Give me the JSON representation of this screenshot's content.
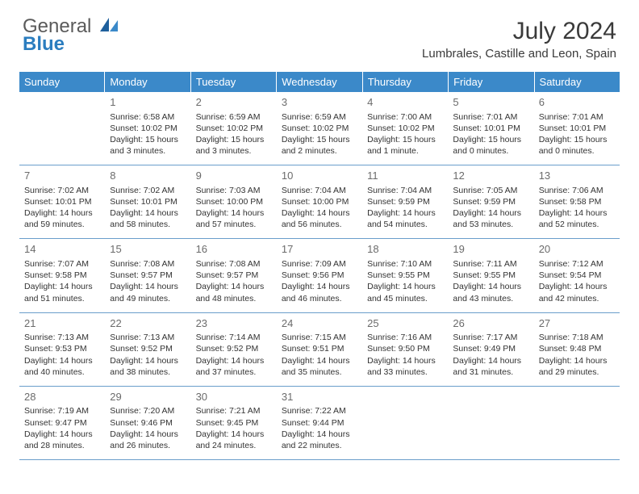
{
  "brand": {
    "general": "General",
    "blue": "Blue"
  },
  "title": "July 2024",
  "location": "Lumbrales, Castille and Leon, Spain",
  "colors": {
    "header_bg": "#3b89c9",
    "header_text": "#ffffff",
    "rule": "#6a9ecb",
    "daynum": "#6b6b6b",
    "body_text": "#333333"
  },
  "dayNames": [
    "Sunday",
    "Monday",
    "Tuesday",
    "Wednesday",
    "Thursday",
    "Friday",
    "Saturday"
  ],
  "weeks": [
    [
      null,
      {
        "n": "1",
        "sr": "6:58 AM",
        "ss": "10:02 PM",
        "dl": "15 hours and 3 minutes."
      },
      {
        "n": "2",
        "sr": "6:59 AM",
        "ss": "10:02 PM",
        "dl": "15 hours and 3 minutes."
      },
      {
        "n": "3",
        "sr": "6:59 AM",
        "ss": "10:02 PM",
        "dl": "15 hours and 2 minutes."
      },
      {
        "n": "4",
        "sr": "7:00 AM",
        "ss": "10:02 PM",
        "dl": "15 hours and 1 minute."
      },
      {
        "n": "5",
        "sr": "7:01 AM",
        "ss": "10:01 PM",
        "dl": "15 hours and 0 minutes."
      },
      {
        "n": "6",
        "sr": "7:01 AM",
        "ss": "10:01 PM",
        "dl": "15 hours and 0 minutes."
      }
    ],
    [
      {
        "n": "7",
        "sr": "7:02 AM",
        "ss": "10:01 PM",
        "dl": "14 hours and 59 minutes."
      },
      {
        "n": "8",
        "sr": "7:02 AM",
        "ss": "10:01 PM",
        "dl": "14 hours and 58 minutes."
      },
      {
        "n": "9",
        "sr": "7:03 AM",
        "ss": "10:00 PM",
        "dl": "14 hours and 57 minutes."
      },
      {
        "n": "10",
        "sr": "7:04 AM",
        "ss": "10:00 PM",
        "dl": "14 hours and 56 minutes."
      },
      {
        "n": "11",
        "sr": "7:04 AM",
        "ss": "9:59 PM",
        "dl": "14 hours and 54 minutes."
      },
      {
        "n": "12",
        "sr": "7:05 AM",
        "ss": "9:59 PM",
        "dl": "14 hours and 53 minutes."
      },
      {
        "n": "13",
        "sr": "7:06 AM",
        "ss": "9:58 PM",
        "dl": "14 hours and 52 minutes."
      }
    ],
    [
      {
        "n": "14",
        "sr": "7:07 AM",
        "ss": "9:58 PM",
        "dl": "14 hours and 51 minutes."
      },
      {
        "n": "15",
        "sr": "7:08 AM",
        "ss": "9:57 PM",
        "dl": "14 hours and 49 minutes."
      },
      {
        "n": "16",
        "sr": "7:08 AM",
        "ss": "9:57 PM",
        "dl": "14 hours and 48 minutes."
      },
      {
        "n": "17",
        "sr": "7:09 AM",
        "ss": "9:56 PM",
        "dl": "14 hours and 46 minutes."
      },
      {
        "n": "18",
        "sr": "7:10 AM",
        "ss": "9:55 PM",
        "dl": "14 hours and 45 minutes."
      },
      {
        "n": "19",
        "sr": "7:11 AM",
        "ss": "9:55 PM",
        "dl": "14 hours and 43 minutes."
      },
      {
        "n": "20",
        "sr": "7:12 AM",
        "ss": "9:54 PM",
        "dl": "14 hours and 42 minutes."
      }
    ],
    [
      {
        "n": "21",
        "sr": "7:13 AM",
        "ss": "9:53 PM",
        "dl": "14 hours and 40 minutes."
      },
      {
        "n": "22",
        "sr": "7:13 AM",
        "ss": "9:52 PM",
        "dl": "14 hours and 38 minutes."
      },
      {
        "n": "23",
        "sr": "7:14 AM",
        "ss": "9:52 PM",
        "dl": "14 hours and 37 minutes."
      },
      {
        "n": "24",
        "sr": "7:15 AM",
        "ss": "9:51 PM",
        "dl": "14 hours and 35 minutes."
      },
      {
        "n": "25",
        "sr": "7:16 AM",
        "ss": "9:50 PM",
        "dl": "14 hours and 33 minutes."
      },
      {
        "n": "26",
        "sr": "7:17 AM",
        "ss": "9:49 PM",
        "dl": "14 hours and 31 minutes."
      },
      {
        "n": "27",
        "sr": "7:18 AM",
        "ss": "9:48 PM",
        "dl": "14 hours and 29 minutes."
      }
    ],
    [
      {
        "n": "28",
        "sr": "7:19 AM",
        "ss": "9:47 PM",
        "dl": "14 hours and 28 minutes."
      },
      {
        "n": "29",
        "sr": "7:20 AM",
        "ss": "9:46 PM",
        "dl": "14 hours and 26 minutes."
      },
      {
        "n": "30",
        "sr": "7:21 AM",
        "ss": "9:45 PM",
        "dl": "14 hours and 24 minutes."
      },
      {
        "n": "31",
        "sr": "7:22 AM",
        "ss": "9:44 PM",
        "dl": "14 hours and 22 minutes."
      },
      null,
      null,
      null
    ]
  ],
  "labels": {
    "sunrise": "Sunrise:",
    "sunset": "Sunset:",
    "daylight": "Daylight:"
  }
}
